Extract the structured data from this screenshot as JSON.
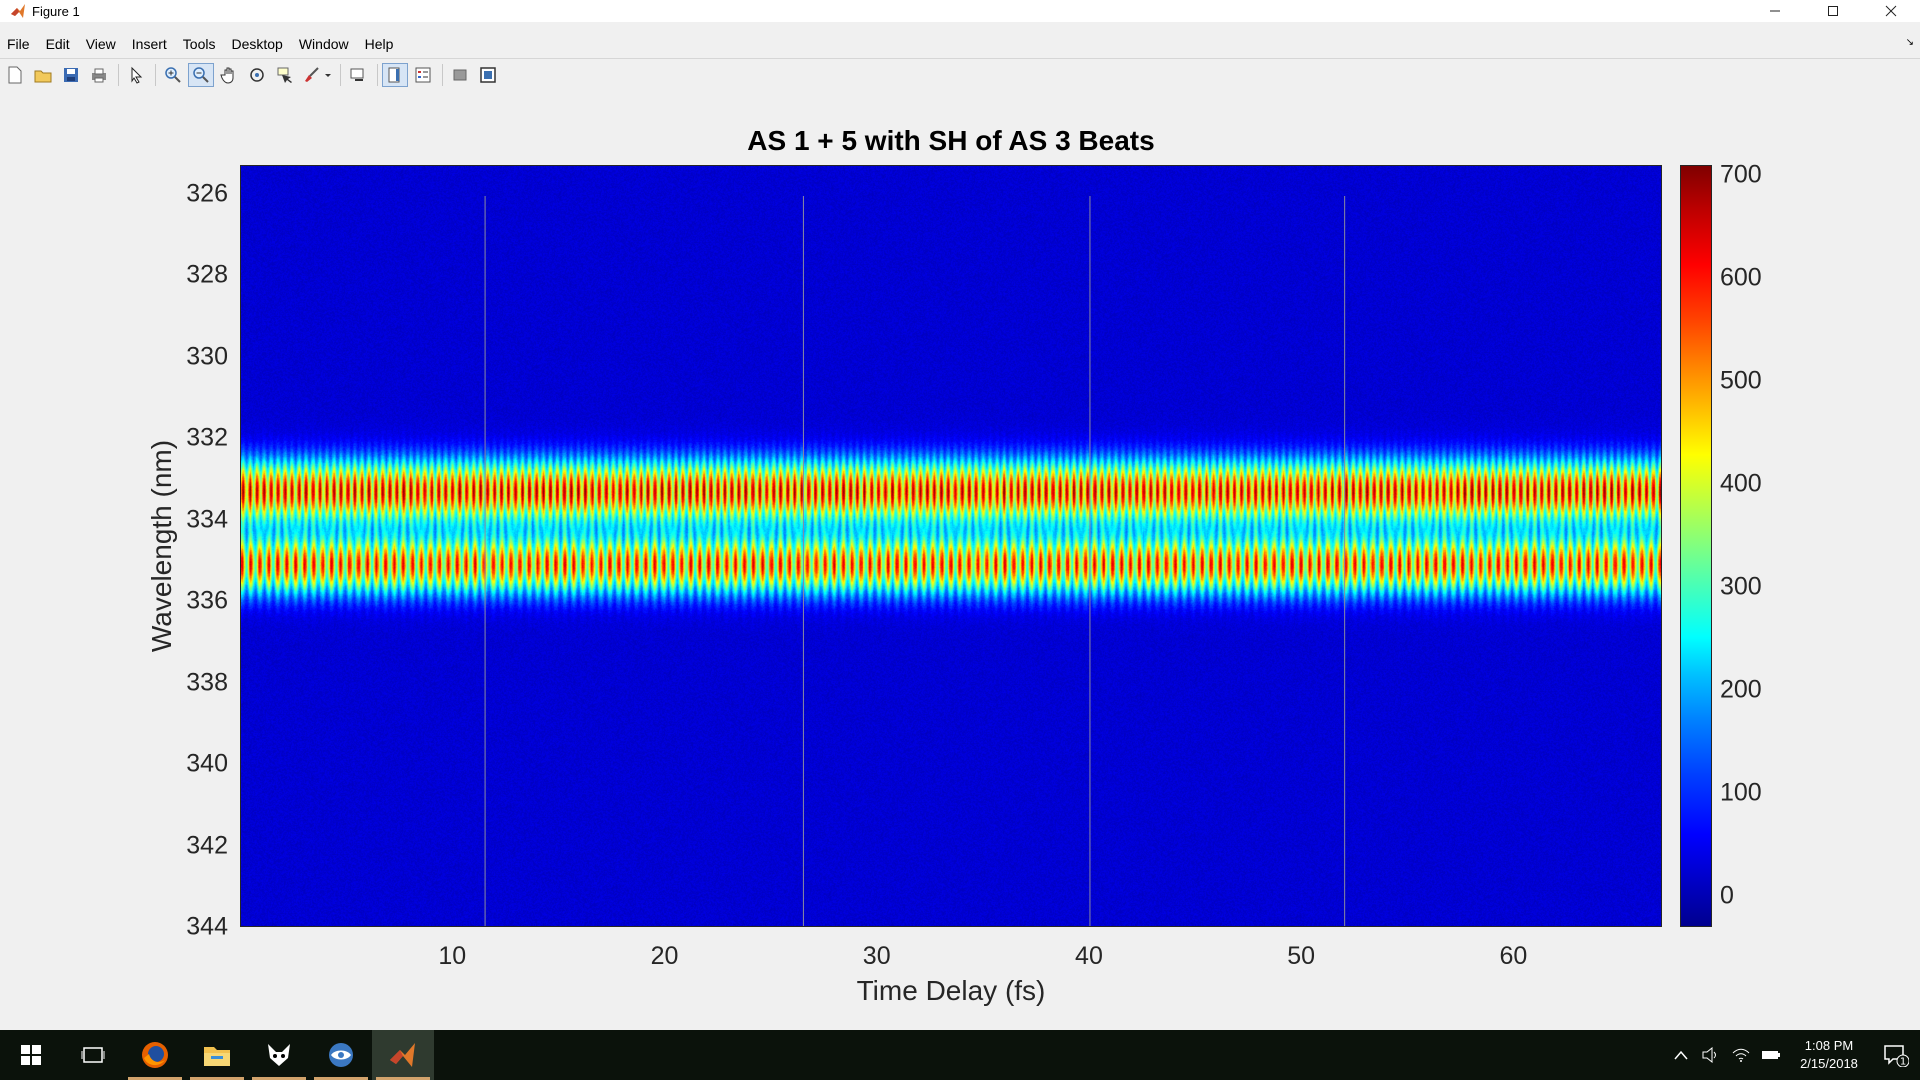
{
  "window": {
    "title": "Figure 1",
    "controls": [
      "minimize",
      "maximize",
      "close"
    ]
  },
  "menu": [
    "File",
    "Edit",
    "View",
    "Insert",
    "Tools",
    "Desktop",
    "Window",
    "Help"
  ],
  "toolbar": {
    "buttons": [
      {
        "name": "new-figure-icon"
      },
      {
        "name": "open-file-icon"
      },
      {
        "name": "save-icon"
      },
      {
        "name": "print-icon"
      },
      {
        "name": "edit-plot-arrow-icon"
      },
      {
        "name": "zoom-in-icon"
      },
      {
        "name": "zoom-out-icon"
      },
      {
        "name": "pan-icon"
      },
      {
        "name": "rotate-3d-icon"
      },
      {
        "name": "data-cursor-icon"
      },
      {
        "name": "brush-icon"
      },
      {
        "name": "link-plot-icon"
      },
      {
        "name": "insert-colorbar-icon"
      },
      {
        "name": "insert-legend-icon"
      },
      {
        "name": "hide-plot-tools-icon"
      },
      {
        "name": "show-plot-tools-icon"
      }
    ]
  },
  "chart_data": {
    "type": "heatmap",
    "title": "AS 1 + 5 with SH of AS 3 Beats",
    "xlabel": "Time Delay (fs)",
    "ylabel": "Wavelength (nm)",
    "xlim": [
      0,
      67
    ],
    "ylim": [
      325.3,
      344
    ],
    "y_reversed": true,
    "xticks": [
      10,
      20,
      30,
      40,
      50,
      60
    ],
    "yticks": [
      326,
      328,
      330,
      332,
      334,
      336,
      338,
      340,
      342,
      344
    ],
    "colormap": "jet",
    "clim": [
      -30,
      710
    ],
    "colorbar_ticks": [
      0,
      100,
      200,
      300,
      400,
      500,
      600,
      700
    ],
    "bands": [
      {
        "wavelength_center": 333.3,
        "approx_peak": 650
      },
      {
        "wavelength_center": 335.1,
        "approx_peak": 600
      }
    ],
    "vertical_lines_x": [
      11.5,
      26.5,
      40,
      52
    ],
    "background_level": 30
  },
  "taskbar": {
    "items": [
      "windows-start-icon",
      "task-view-icon",
      "firefox-icon",
      "file-explorer-icon",
      "app-fox-icon",
      "network-app-icon",
      "matlab-icon"
    ],
    "clock_time": "1:08 PM",
    "clock_date": "2/15/2018",
    "notification_count": "1"
  }
}
